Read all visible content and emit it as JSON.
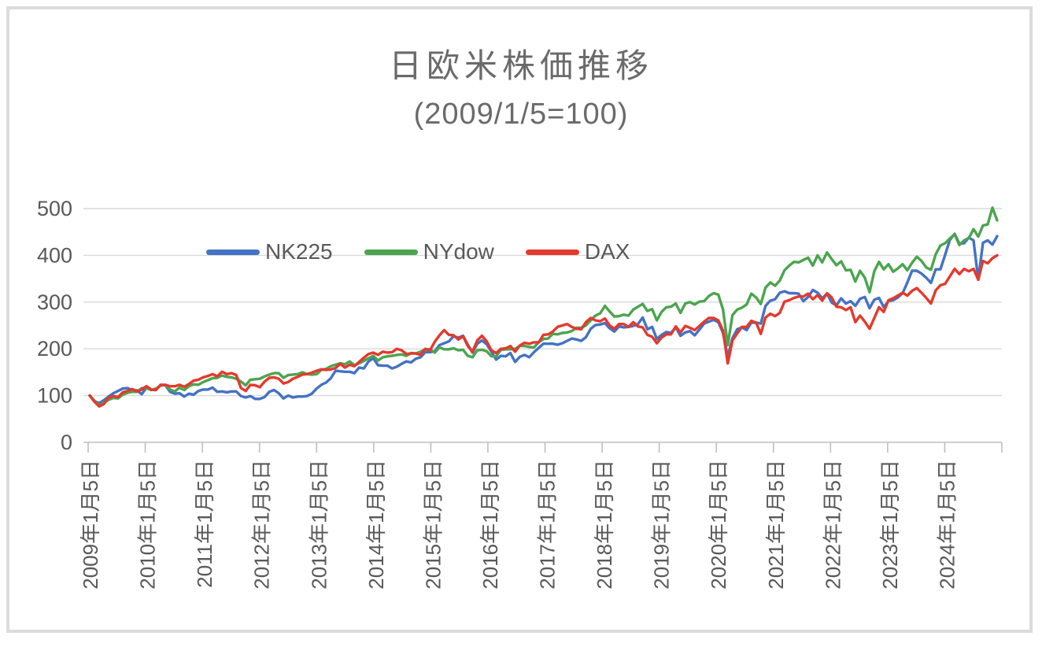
{
  "chart_data": {
    "type": "line",
    "title": "日欧米株価推移",
    "subtitle": "(2009/1/5=100)",
    "legend_position": "inside-upper-left",
    "grid": true,
    "ylim": [
      0,
      500
    ],
    "y_ticks": [
      0,
      100,
      200,
      300,
      400,
      500
    ],
    "x_tick_labels": [
      "2009年1月5日",
      "2010年1月5日",
      "2011年1月5日",
      "2012年1月5日",
      "2013年1月5日",
      "2014年1月5日",
      "2015年1月5日",
      "2016年1月5日",
      "2017年1月5日",
      "2018年1月5日",
      "2019年1月5日",
      "2020年1月5日",
      "2021年1月5日",
      "2022年1月5日",
      "2023年1月5日",
      "2024年1月5日"
    ],
    "x_resolution": "monthly (first point = 2009/1/5, then month-end values through 2024/12)",
    "text_color": "#595959",
    "grid_color": "#d9d9d9",
    "axis_color": "#bfbfbf",
    "series": [
      {
        "name": "NK225",
        "color": "#4472c4",
        "values": [
          100,
          88,
          84,
          90,
          98,
          105,
          110,
          115,
          116,
          112,
          111,
          103,
          117,
          113,
          112,
          123,
          122,
          108,
          104,
          105,
          98,
          104,
          102,
          110,
          113,
          113,
          117,
          108,
          109,
          107,
          109,
          109,
          99,
          96,
          99,
          93,
          93,
          97,
          108,
          112,
          105,
          94,
          100,
          96,
          98,
          98,
          99,
          104,
          115,
          123,
          128,
          137,
          153,
          152,
          151,
          151,
          148,
          160,
          158,
          173,
          180,
          165,
          164,
          164,
          158,
          162,
          168,
          173,
          171,
          179,
          182,
          193,
          193,
          195,
          208,
          212,
          216,
          227,
          224,
          228,
          209,
          192,
          211,
          218,
          210,
          194,
          177,
          185,
          184,
          191,
          172,
          183,
          187,
          182,
          193,
          202,
          211,
          211,
          211,
          209,
          212,
          217,
          222,
          220,
          217,
          225,
          243,
          251,
          252,
          255,
          244,
          237,
          248,
          246,
          247,
          249,
          253,
          267,
          242,
          247,
          221,
          230,
          236,
          234,
          246,
          228,
          235,
          238,
          229,
          241,
          254,
          258,
          262,
          257,
          234,
          183,
          223,
          242,
          246,
          240,
          256,
          256,
          254,
          292,
          303,
          306,
          320,
          323,
          319,
          319,
          318,
          302,
          311,
          326,
          320,
          308,
          318,
          299,
          293,
          308,
          297,
          302,
          292,
          307,
          311,
          287,
          305,
          309,
          289,
          302,
          304,
          310,
          319,
          342,
          367,
          367,
          361,
          352,
          341,
          370,
          370,
          401,
          433,
          446,
          425,
          426,
          438,
          432,
          348,
          427,
          432,
          423,
          441
        ]
      },
      {
        "name": "NYdow",
        "color": "#4ca44f",
        "values": [
          100,
          89,
          79,
          85,
          91,
          95,
          94,
          102,
          106,
          108,
          108,
          116,
          116,
          112,
          115,
          121,
          123,
          113,
          109,
          117,
          112,
          120,
          124,
          123,
          129,
          133,
          137,
          138,
          143,
          140,
          139,
          136,
          130,
          122,
          134,
          135,
          136,
          141,
          145,
          148,
          148,
          138,
          144,
          145,
          146,
          150,
          146,
          145,
          146,
          155,
          157,
          163,
          166,
          169,
          167,
          173,
          165,
          169,
          174,
          180,
          185,
          175,
          182,
          184,
          185,
          187,
          188,
          185,
          191,
          190,
          194,
          199,
          199,
          192,
          203,
          199,
          199,
          201,
          197,
          198,
          185,
          182,
          197,
          198,
          195,
          184,
          184,
          198,
          199,
          199,
          200,
          206,
          206,
          204,
          203,
          214,
          221,
          222,
          232,
          231,
          234,
          235,
          238,
          245,
          245,
          250,
          261,
          271,
          276,
          292,
          280,
          269,
          270,
          273,
          271,
          284,
          290,
          296,
          281,
          285,
          261,
          279,
          289,
          290,
          297,
          277,
          297,
          300,
          295,
          301,
          302,
          313,
          319,
          316,
          284,
          208,
          272,
          284,
          288,
          295,
          318,
          310,
          296,
          331,
          342,
          335,
          346,
          368,
          378,
          386,
          385,
          390,
          395,
          378,
          400,
          385,
          406,
          392,
          379,
          387,
          368,
          369,
          344,
          367,
          352,
          321,
          366,
          386,
          370,
          381,
          365,
          372,
          381,
          368,
          384,
          397,
          388,
          374,
          369,
          402,
          421,
          426,
          436,
          445,
          422,
          432,
          437,
          456,
          440,
          464,
          466,
          502,
          475
        ]
      },
      {
        "name": "DAX",
        "color": "#e4392d",
        "values": [
          100,
          87,
          77,
          82,
          96,
          99,
          97,
          107,
          110,
          114,
          109,
          113,
          120,
          113,
          112,
          123,
          123,
          120,
          120,
          123,
          119,
          125,
          132,
          134,
          139,
          142,
          146,
          141,
          151,
          146,
          148,
          144,
          116,
          110,
          123,
          122,
          118,
          130,
          138,
          139,
          136,
          126,
          129,
          136,
          140,
          145,
          146,
          149,
          153,
          156,
          155,
          156,
          159,
          168,
          160,
          166,
          163,
          172,
          181,
          189,
          192,
          187,
          194,
          192,
          193,
          200,
          197,
          189,
          190,
          190,
          187,
          200,
          197,
          215,
          229,
          240,
          230,
          229,
          220,
          227,
          206,
          194,
          218,
          228,
          216,
          197,
          191,
          200,
          201,
          206,
          194,
          207,
          213,
          211,
          214,
          214,
          230,
          231,
          237,
          247,
          250,
          253,
          247,
          243,
          242,
          257,
          266,
          261,
          259,
          265,
          250,
          243,
          253,
          253,
          247,
          257,
          248,
          246,
          230,
          226,
          212,
          224,
          231,
          231,
          248,
          235,
          249,
          245,
          240,
          249,
          258,
          266,
          266,
          261,
          239,
          169,
          218,
          233,
          247,
          247,
          260,
          256,
          232,
          267,
          275,
          270,
          277,
          301,
          304,
          309,
          312,
          312,
          318,
          306,
          315,
          303,
          319,
          310,
          290,
          289,
          283,
          289,
          257,
          271,
          258,
          243,
          266,
          289,
          279,
          304,
          308,
          314,
          320,
          314,
          324,
          330,
          320,
          309,
          297,
          325,
          336,
          339,
          355,
          371,
          360,
          371,
          366,
          371,
          348,
          388,
          383,
          394,
          400
        ]
      }
    ]
  }
}
